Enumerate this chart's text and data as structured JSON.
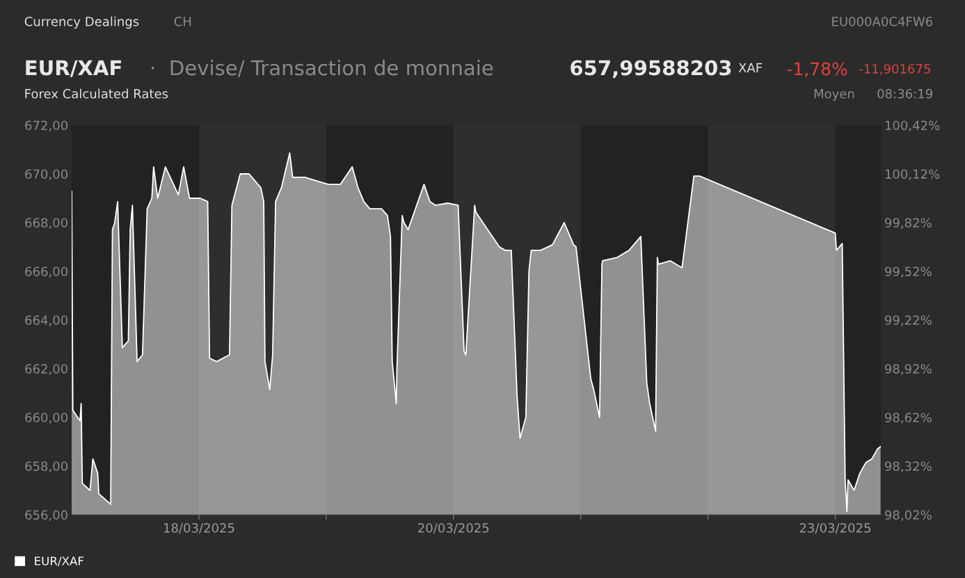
{
  "chart_data": {
    "type": "area",
    "title": "EUR/XAF",
    "subtitle": "·  Devise/ Transaction de monnaie",
    "annotations": [
      "Currency Dealings",
      "CH",
      "EU000A0C4FW6",
      "657,99588203",
      "XAF",
      "-1,78%",
      "-11,901675",
      "Forex Calculated Rates",
      "Moyen",
      "08:36:19"
    ],
    "legend": "bottom left",
    "grid": false,
    "marker": "none",
    "line_style": "solid",
    "xlim": [
      "2025-03-17T00:00",
      "2025-03-23T08:36"
    ],
    "xticks": [
      {
        "value": "2025-03-18",
        "label": "18/03/2025"
      },
      {
        "value": "2025-03-19",
        "label": null
      },
      {
        "value": "2025-03-20",
        "label": "20/03/2025"
      },
      {
        "value": "2025-03-21",
        "label": null
      },
      {
        "value": "2025-03-22",
        "label": null
      },
      {
        "value": "2025-03-23",
        "label": "23/03/2025"
      }
    ],
    "ylim": [
      656,
      672
    ],
    "yticks": [
      {
        "value": 656,
        "label": "656,00"
      },
      {
        "value": 658,
        "label": "658,00"
      },
      {
        "value": 660,
        "label": "660,00"
      },
      {
        "value": 662,
        "label": "662,00"
      },
      {
        "value": 664,
        "label": "664,00"
      },
      {
        "value": 666,
        "label": "666,00"
      },
      {
        "value": 668,
        "label": "668,00"
      },
      {
        "value": 670,
        "label": "670,00"
      },
      {
        "value": 672,
        "label": "672,00"
      }
    ],
    "y2lim": [
      98.02,
      100.42
    ],
    "y2ticks": [
      {
        "value": 98.02,
        "label": "98,02%"
      },
      {
        "value": 98.32,
        "label": "98,32%"
      },
      {
        "value": 98.62,
        "label": "98,62%"
      },
      {
        "value": 98.92,
        "label": "98,92%"
      },
      {
        "value": 99.22,
        "label": "99,22%"
      },
      {
        "value": 99.52,
        "label": "99,52%"
      },
      {
        "value": 99.82,
        "label": "99,82%"
      },
      {
        "value": 100.12,
        "label": "100,12%"
      },
      {
        "value": 100.42,
        "label": "100,42%"
      }
    ],
    "bands": [
      {
        "axis": "x",
        "from": "2025-03-17",
        "to": "2025-03-18",
        "color": "#222222"
      },
      {
        "axis": "x",
        "from": "2025-03-19",
        "to": "2025-03-20",
        "color": "#222222"
      },
      {
        "axis": "x",
        "from": "2025-03-21",
        "to": "2025-03-22",
        "color": "#222222"
      },
      {
        "axis": "x",
        "from": "2025-03-23",
        "to": "2025-03-23T08:36",
        "color": "#222222"
      }
    ],
    "series": [
      {
        "name": "EUR/XAF",
        "color": "#ffffff",
        "x": [
          "2025-03-17T00:00",
          "2025-03-17T00:13",
          "2025-03-17T01:34",
          "2025-03-17T01:47",
          "2025-03-17T02:00",
          "2025-03-17T03:27",
          "2025-03-17T04:00",
          "2025-03-17T04:54",
          "2025-03-17T05:07",
          "2025-03-17T07:21",
          "2025-03-17T07:41",
          "2025-03-17T08:07",
          "2025-03-17T08:40",
          "2025-03-17T09:33",
          "2025-03-17T10:41",
          "2025-03-17T11:02",
          "2025-03-17T11:27",
          "2025-03-17T12:20",
          "2025-03-17T13:21",
          "2025-03-17T14:14",
          "2025-03-17T15:07",
          "2025-03-17T15:27",
          "2025-03-17T16:13",
          "2025-03-17T17:40",
          "2025-03-17T20:07",
          "2025-03-17T21:07",
          "2025-03-17T22:13",
          "2025-03-18T00:13",
          "2025-03-18T01:39",
          "2025-03-18T02:00",
          "2025-03-18T03:20",
          "2025-03-18T05:46",
          "2025-03-18T06:13",
          "2025-03-18T07:47",
          "2025-03-18T09:27",
          "2025-03-18T11:40",
          "2025-03-18T12:13",
          "2025-03-18T12:27",
          "2025-03-18T13:21",
          "2025-03-18T13:54",
          "2025-03-18T14:27",
          "2025-03-18T15:33",
          "2025-03-18T17:07",
          "2025-03-18T17:40",
          "2025-03-18T20:00",
          "2025-03-18T22:13",
          "2025-03-19T00:27",
          "2025-03-19T02:40",
          "2025-03-19T04:54",
          "2025-03-19T06:00",
          "2025-03-19T07:06",
          "2025-03-19T08:14",
          "2025-03-19T10:26",
          "2025-03-19T11:33",
          "2025-03-19T12:07",
          "2025-03-19T12:27",
          "2025-03-19T13:13",
          "2025-03-19T13:20",
          "2025-03-19T14:20",
          "2025-03-19T14:40",
          "2025-03-19T15:27",
          "2025-03-19T18:27",
          "2025-03-19T19:34",
          "2025-03-19T20:40",
          "2025-03-19T22:54",
          "2025-03-20T00:53",
          "2025-03-20T02:00",
          "2025-03-20T02:20",
          "2025-03-20T04:00",
          "2025-03-20T04:13",
          "2025-03-20T06:27",
          "2025-03-20T08:40",
          "2025-03-20T09:46",
          "2025-03-20T10:54",
          "2025-03-20T12:00",
          "2025-03-20T12:33",
          "2025-03-20T13:39",
          "2025-03-20T14:14",
          "2025-03-20T14:40",
          "2025-03-20T16:26",
          "2025-03-20T18:40",
          "2025-03-20T20:53",
          "2025-03-20T22:39",
          "2025-03-20T23:07",
          "2025-03-21T01:54",
          "2025-03-21T02:27",
          "2025-03-21T03:33",
          "2025-03-21T04:00",
          "2025-03-21T04:07",
          "2025-03-21T06:53",
          "2025-03-21T09:07",
          "2025-03-21T11:20",
          "2025-03-21T12:27",
          "2025-03-21T13:00",
          "2025-03-21T14:07",
          "2025-03-21T14:27",
          "2025-03-21T14:40",
          "2025-03-21T16:54",
          "2025-03-21T19:06",
          "2025-03-21T21:20",
          "2025-03-21T22:26",
          "2025-03-23T00:00",
          "2025-03-23T00:13",
          "2025-03-23T01:19",
          "2025-03-23T01:52",
          "2025-03-23T02:12",
          "2025-03-23T02:25",
          "2025-03-23T03:33",
          "2025-03-23T04:39",
          "2025-03-23T05:46",
          "2025-03-23T06:53",
          "2025-03-23T07:59",
          "2025-03-23T08:33"
        ],
        "values": [
          669.29,
          660.29,
          659.86,
          660.57,
          657.29,
          657.0,
          658.29,
          657.71,
          656.86,
          656.43,
          667.71,
          668.0,
          668.86,
          662.86,
          663.14,
          667.71,
          668.71,
          662.29,
          662.57,
          668.57,
          669.0,
          670.29,
          669.0,
          670.29,
          669.14,
          670.29,
          669.0,
          669.0,
          668.86,
          662.43,
          662.29,
          662.57,
          668.71,
          670.0,
          670.0,
          669.43,
          668.86,
          662.29,
          661.14,
          662.57,
          668.86,
          669.43,
          670.86,
          669.86,
          669.86,
          669.71,
          669.57,
          669.57,
          670.29,
          669.43,
          668.86,
          668.57,
          668.57,
          668.29,
          667.43,
          662.29,
          660.57,
          662.0,
          668.29,
          668.0,
          667.71,
          669.57,
          668.86,
          668.71,
          668.8,
          668.71,
          662.71,
          662.57,
          668.71,
          668.43,
          667.71,
          667.0,
          666.86,
          666.86,
          660.86,
          659.14,
          660.0,
          666.0,
          666.86,
          666.86,
          667.09,
          668.0,
          667.09,
          667.0,
          661.57,
          661.14,
          660.0,
          666.29,
          666.43,
          666.57,
          666.86,
          667.43,
          661.43,
          660.57,
          659.43,
          666.57,
          666.29,
          666.43,
          666.14,
          669.91,
          669.91,
          667.57,
          666.86,
          667.14,
          657.43,
          656.14,
          657.43,
          657.0,
          657.71,
          658.14,
          658.29,
          658.71,
          658.8
        ]
      }
    ]
  }
}
